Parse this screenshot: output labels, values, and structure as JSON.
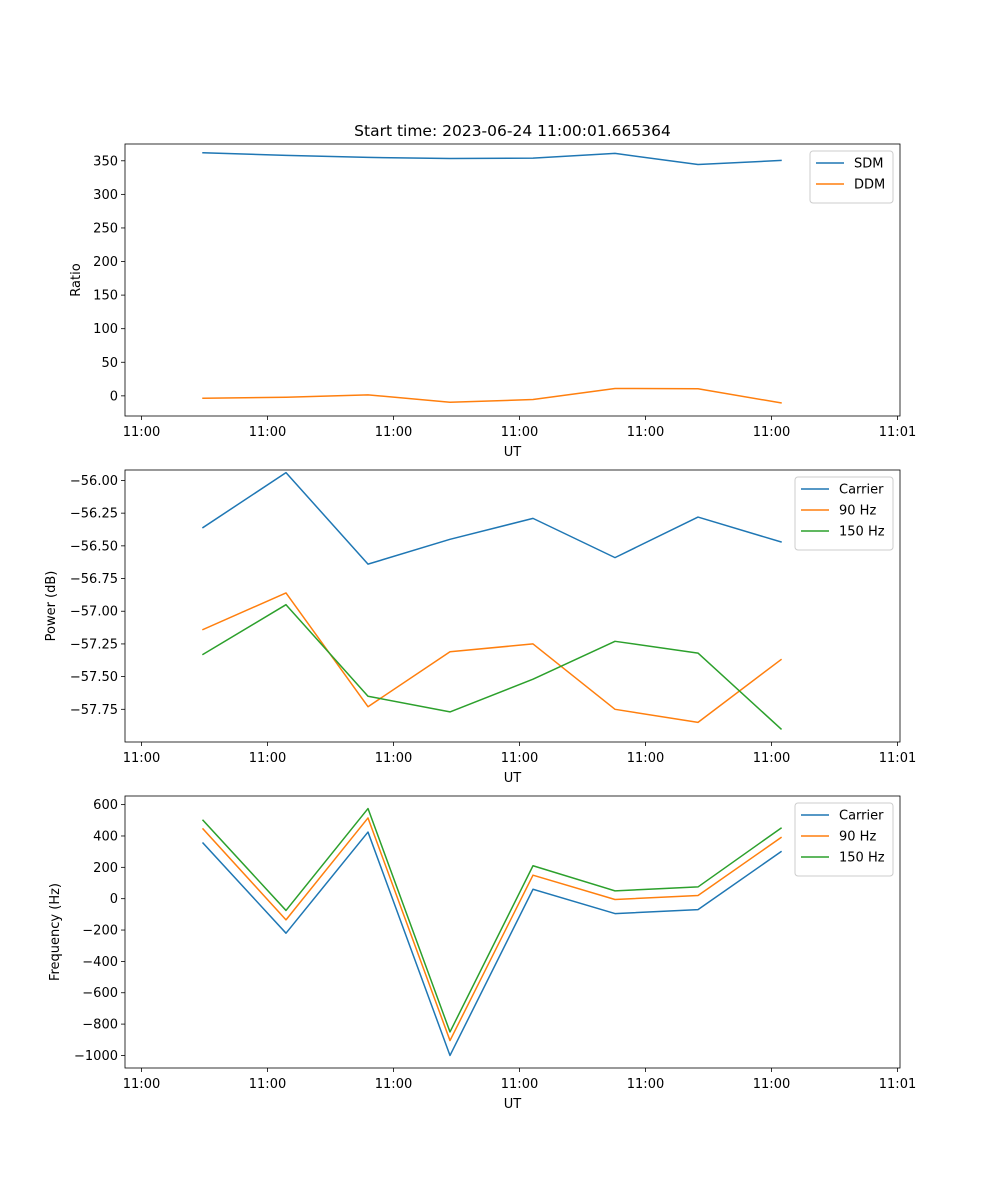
{
  "figure": {
    "title": "Start time: 2023-06-24 11:00:01.665364"
  },
  "colors": {
    "blue": "#1f77b4",
    "orange": "#ff7f0e",
    "green": "#2ca02c"
  },
  "chart_data": [
    {
      "type": "line",
      "title": "Start time: 2023-06-24 11:00:01.665364",
      "xlabel": "UT",
      "ylabel": "Ratio",
      "x_tick_labels": [
        "11:00",
        "11:00",
        "11:00",
        "11:00",
        "11:00",
        "11:00",
        "11:00",
        "11:01"
      ],
      "y_ticks": [
        0,
        50,
        100,
        150,
        200,
        250,
        300,
        350
      ],
      "ylim": [
        -30,
        375
      ],
      "legend": "top-right",
      "series": [
        {
          "name": "SDM",
          "color": "#1f77b4",
          "values": [
            362,
            358,
            355,
            353.5,
            354,
            361,
            344.5,
            350.5
          ]
        },
        {
          "name": "DDM",
          "color": "#ff7f0e",
          "values": [
            -3.5,
            -2,
            1.5,
            -9.5,
            -5.5,
            11,
            10.5,
            -10.5
          ]
        }
      ]
    },
    {
      "type": "line",
      "xlabel": "UT",
      "ylabel": "Power (dB)",
      "x_tick_labels": [
        "11:00",
        "11:00",
        "11:00",
        "11:00",
        "11:00",
        "11:00",
        "11:00",
        "11:01"
      ],
      "y_ticks": [
        -57.75,
        -57.5,
        -57.25,
        -57.0,
        -56.75,
        -56.5,
        -56.25,
        -56.0
      ],
      "y_tick_labels": [
        "−57.75",
        "−57.50",
        "−57.25",
        "−57.00",
        "−56.75",
        "−56.50",
        "−56.25",
        "−56.00"
      ],
      "ylim": [
        -58.0,
        -55.92
      ],
      "legend": "top-right",
      "series": [
        {
          "name": "Carrier",
          "color": "#1f77b4",
          "values": [
            -56.36,
            -55.94,
            -56.64,
            -56.45,
            -56.29,
            -56.59,
            -56.28,
            -56.47
          ]
        },
        {
          "name": "90 Hz",
          "color": "#ff7f0e",
          "values": [
            -57.14,
            -56.86,
            -57.73,
            -57.31,
            -57.25,
            -57.75,
            -57.85,
            -57.37
          ]
        },
        {
          "name": "150 Hz",
          "color": "#2ca02c",
          "values": [
            -57.33,
            -56.95,
            -57.65,
            -57.77,
            -57.52,
            -57.23,
            -57.32,
            -57.9
          ]
        }
      ]
    },
    {
      "type": "line",
      "xlabel": "UT",
      "ylabel": "Frequency (Hz)",
      "x_tick_labels": [
        "11:00",
        "11:00",
        "11:00",
        "11:00",
        "11:00",
        "11:00",
        "11:00",
        "11:01"
      ],
      "y_ticks": [
        -1000,
        -800,
        -600,
        -400,
        -200,
        0,
        200,
        400,
        600
      ],
      "y_tick_labels": [
        "−1000",
        "−800",
        "−600",
        "−400",
        "−200",
        "0",
        "200",
        "400",
        "600"
      ],
      "ylim": [
        -1080,
        655
      ],
      "legend": "top-right",
      "series": [
        {
          "name": "Carrier",
          "color": "#1f77b4",
          "values": [
            355,
            -220,
            425,
            -1000,
            60,
            -95,
            -70,
            300
          ]
        },
        {
          "name": "90 Hz",
          "color": "#ff7f0e",
          "values": [
            445,
            -135,
            515,
            -905,
            150,
            -5,
            20,
            390
          ]
        },
        {
          "name": "150 Hz",
          "color": "#2ca02c",
          "values": [
            500,
            -75,
            575,
            -850,
            210,
            50,
            75,
            450
          ]
        }
      ]
    }
  ]
}
